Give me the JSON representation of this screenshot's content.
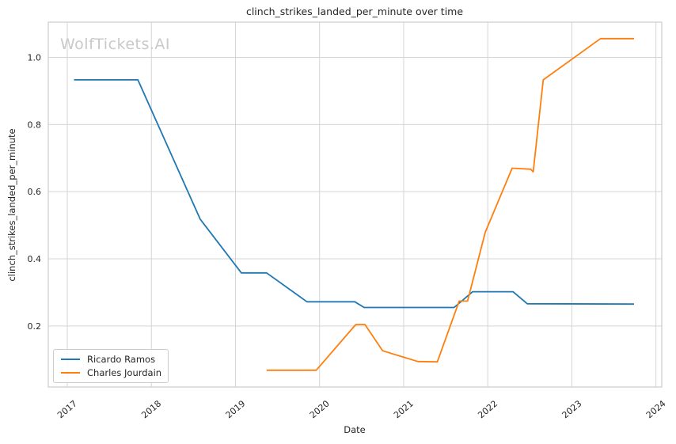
{
  "watermark": "WolfTickets.AI",
  "chart_data": {
    "type": "line",
    "title": "clinch_strikes_landed_per_minute over time",
    "xlabel": "Date",
    "ylabel": "clinch_strikes_landed_per_minute",
    "x_ticks": [
      2017,
      2018,
      2019,
      2020,
      2021,
      2022,
      2023,
      2024
    ],
    "y_ticks": [
      0.2,
      0.4,
      0.6,
      0.8,
      1.0
    ],
    "xlim": [
      2016.774,
      2024.069
    ],
    "ylim": [
      0.018,
      1.105
    ],
    "grid": true,
    "legend_position": "lower-left",
    "series": [
      {
        "name": "Ricardo Ramos",
        "color": "#1f77b4",
        "points": [
          [
            2017.08,
            0.933
          ],
          [
            2017.84,
            0.933
          ],
          [
            2018.58,
            0.518
          ],
          [
            2019.07,
            0.358
          ],
          [
            2019.37,
            0.358
          ],
          [
            2019.85,
            0.272
          ],
          [
            2020.42,
            0.272
          ],
          [
            2020.53,
            0.255
          ],
          [
            2021.6,
            0.255
          ],
          [
            2021.82,
            0.302
          ],
          [
            2022.3,
            0.302
          ],
          [
            2022.47,
            0.266
          ],
          [
            2023.74,
            0.265
          ]
        ]
      },
      {
        "name": "Charles Jourdain",
        "color": "#ff7f0e",
        "points": [
          [
            2019.37,
            0.068
          ],
          [
            2019.96,
            0.068
          ],
          [
            2020.43,
            0.204
          ],
          [
            2020.54,
            0.204
          ],
          [
            2020.75,
            0.126
          ],
          [
            2021.17,
            0.094
          ],
          [
            2021.4,
            0.093
          ],
          [
            2021.66,
            0.274
          ],
          [
            2021.76,
            0.274
          ],
          [
            2021.97,
            0.479
          ],
          [
            2022.29,
            0.67
          ],
          [
            2022.51,
            0.667
          ],
          [
            2022.54,
            0.659
          ],
          [
            2022.66,
            0.933
          ],
          [
            2023.34,
            1.056
          ],
          [
            2023.74,
            1.056
          ]
        ]
      }
    ],
    "style": {
      "grid_color": "#d5d5d5",
      "spine_color": "#cccccc",
      "tick_text_color": "#262626",
      "background": "#ffffff"
    }
  }
}
